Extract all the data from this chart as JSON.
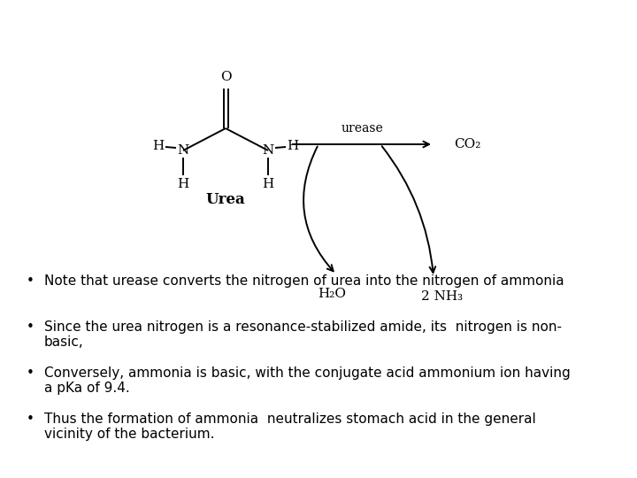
{
  "background_color": "#ffffff",
  "bullet_points": [
    "Note that urease converts the nitrogen of urea into the nitrogen of ammonia",
    "Since the urea nitrogen is a resonance-stabilized amide, its  nitrogen is non-\nbasic,",
    "Conversely, ammonia is basic, with the conjugate acid ammonium ion having\na pKa of 9.4.",
    "Thus the formation of ammonia  neutralizes stomach acid in the general\nvicinity of the bacterium."
  ],
  "text_color": "#000000",
  "fontsize": 11.0
}
